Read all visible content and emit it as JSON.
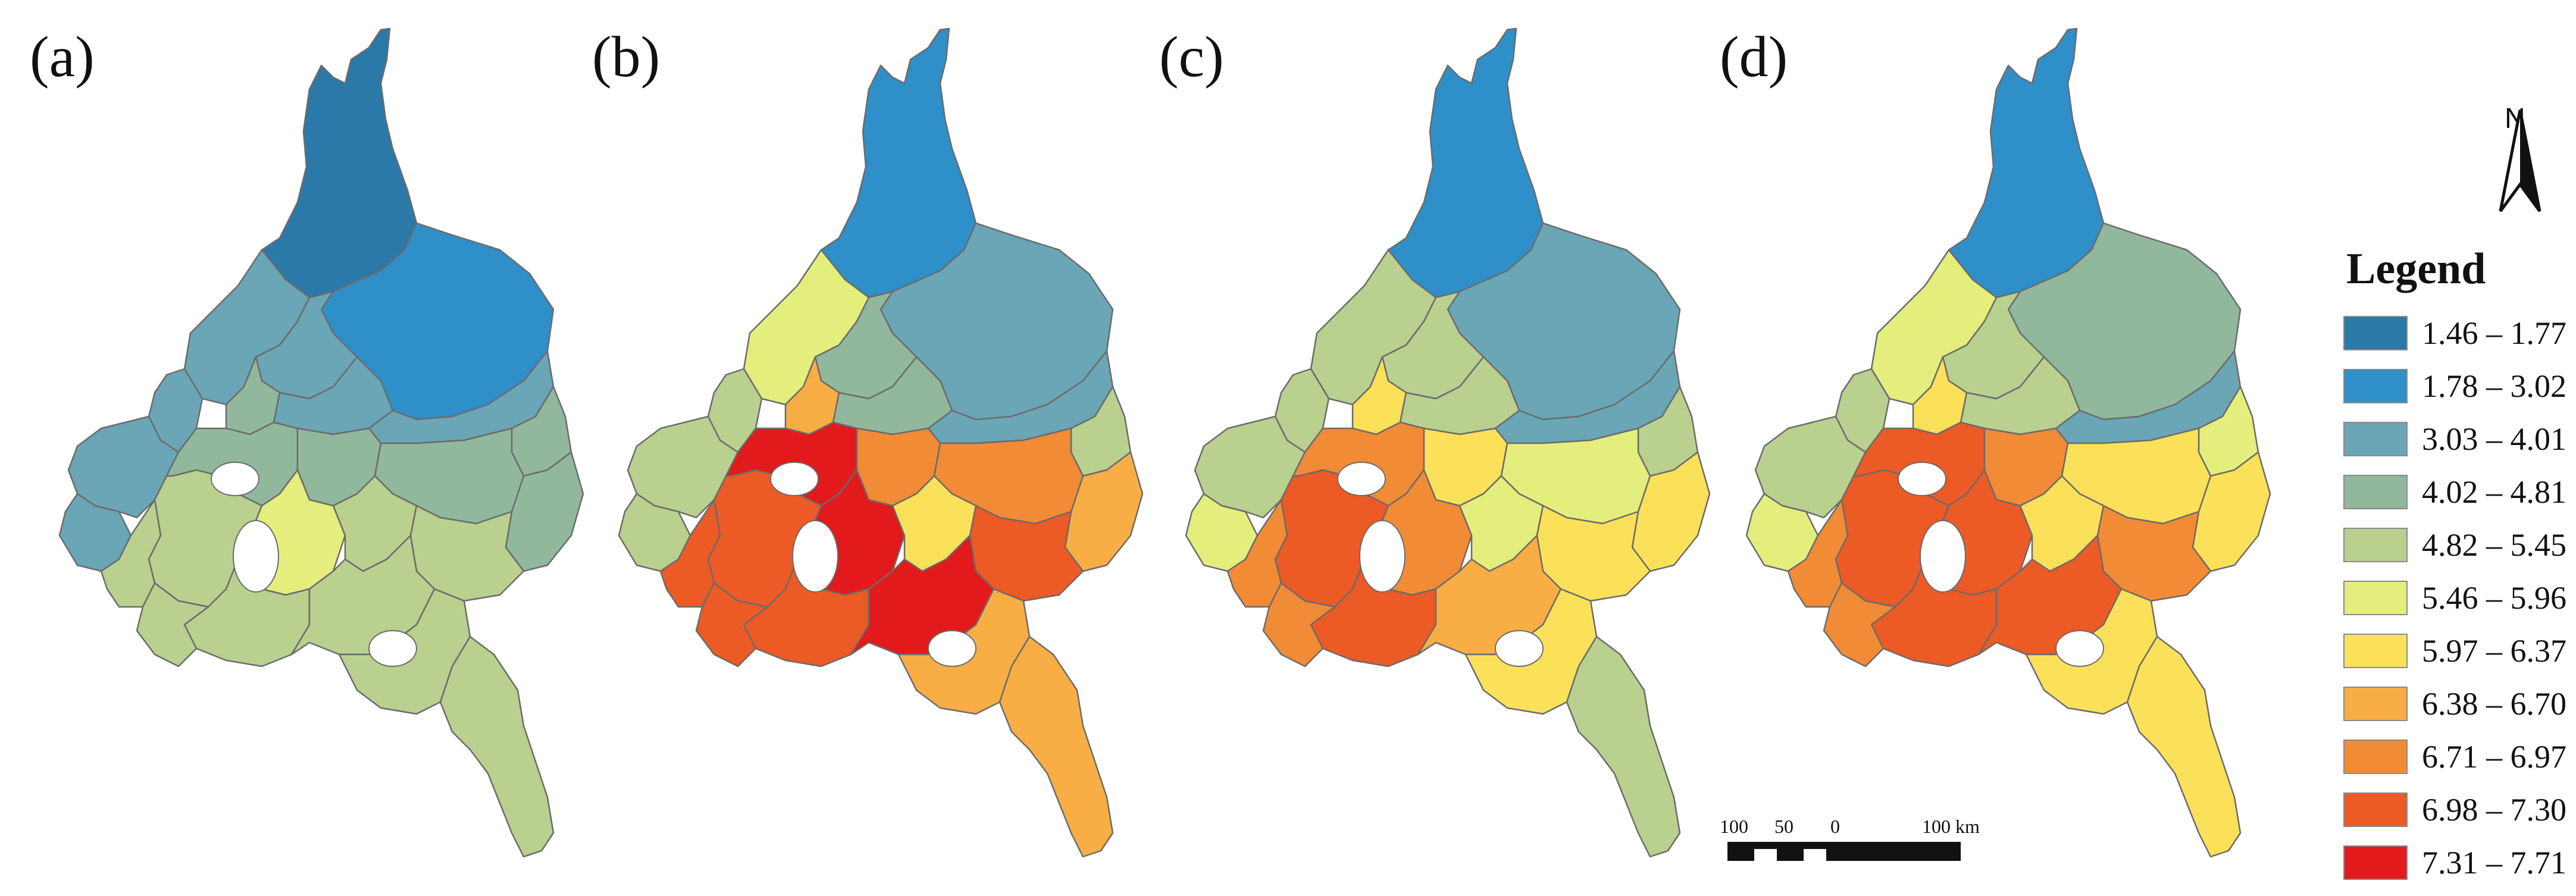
{
  "panels": [
    {
      "label": "(a)"
    },
    {
      "label": "(b)"
    },
    {
      "label": "(c)"
    },
    {
      "label": "(d)"
    }
  ],
  "north_arrow": {
    "letter": "N"
  },
  "legend": {
    "title": "Legend",
    "classes": [
      {
        "range": "1.46 – 1.77",
        "color": "#2b79a8"
      },
      {
        "range": "1.78 – 3.02",
        "color": "#2f8fc9"
      },
      {
        "range": "3.03 – 4.01",
        "color": "#6aa6b6"
      },
      {
        "range": "4.02 – 4.81",
        "color": "#91b89d"
      },
      {
        "range": "4.82 – 5.45",
        "color": "#b9d08f"
      },
      {
        "range": "5.46 – 5.96",
        "color": "#e4ee7c"
      },
      {
        "range": "5.97 – 6.37",
        "color": "#fbe15a"
      },
      {
        "range": "6.38 – 6.70",
        "color": "#f8ae45"
      },
      {
        "range": "6.71 – 6.97",
        "color": "#f28b36"
      },
      {
        "range": "6.98 – 7.30",
        "color": "#ec5a25"
      },
      {
        "range": "7.31 – 7.71",
        "color": "#e31a1c"
      }
    ]
  },
  "scale_bar": {
    "ticks": [
      "100",
      "50",
      "0",
      "100 km"
    ]
  }
}
